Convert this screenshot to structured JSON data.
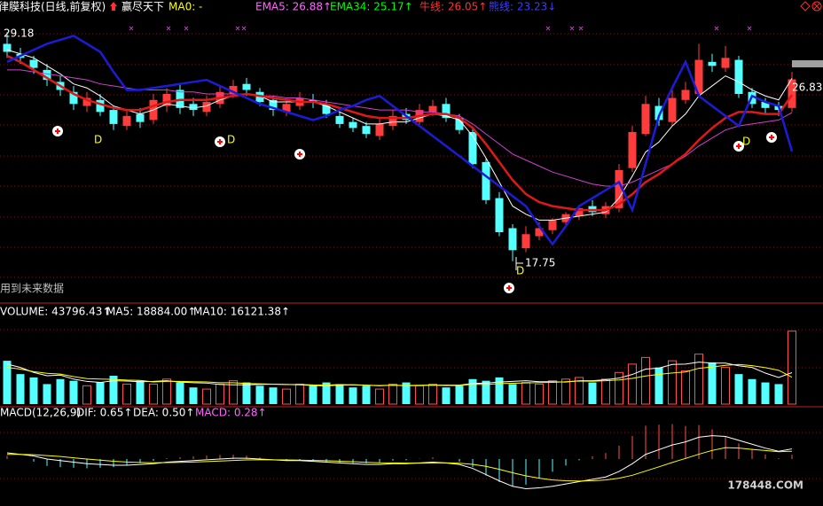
{
  "chart_data": [
    {
      "type": "candlestick",
      "header": [
        {
          "text": "律膜科技(日线,前复权)",
          "color": "#ffffff"
        },
        {
          "text": "赢尽天下",
          "color": "#ffffff"
        },
        {
          "text": "MA0: -",
          "color": "#ffff00"
        },
        {
          "text": "EMA5: 26.88↑",
          "color": "#ff66ff"
        },
        {
          "text": "EMA34: 25.17↑",
          "color": "#00ff00"
        },
        {
          "text": "牛线: 26.05↑",
          "color": "#ff3030"
        },
        {
          "text": "熊线: 23.23↓",
          "color": "#3c3cff"
        }
      ],
      "up_color": "#ff3c3c",
      "down_color": "#54ffff",
      "ylim": [
        15.75,
        30.7
      ],
      "open": [
        28.6,
        28.1,
        27.8,
        27.3,
        26.7,
        26.2,
        25.5,
        25.8,
        25.3,
        24.5,
        25.1,
        24.8,
        25.5,
        26.3,
        25.6,
        25.2,
        25.6,
        26.1,
        26.6,
        26.2,
        25.8,
        25.2,
        25.5,
        25.8,
        25.6,
        25.0,
        24.7,
        24.5,
        24.0,
        24.5,
        25.1,
        24.7,
        25.2,
        25.6,
        24.9,
        24.2,
        22.7,
        20.9,
        19.4,
        18.4,
        19.0,
        19.3,
        19.7,
        20.0,
        20.5,
        20.1,
        20.4,
        22.4,
        24.1,
        25.5,
        24.7,
        25.8,
        26.1,
        27.7,
        27.4,
        27.8,
        26.2,
        25.7,
        25.5,
        25.4
      ],
      "high": [
        29.18,
        28.4,
        28.0,
        27.6,
        27.0,
        26.5,
        26.2,
        26.1,
        25.5,
        25.3,
        25.4,
        26.1,
        26.4,
        26.6,
        25.9,
        26.0,
        26.5,
        26.8,
        26.9,
        26.4,
        26.0,
        25.9,
        26.2,
        26.1,
        25.8,
        25.2,
        24.9,
        24.7,
        24.9,
        25.3,
        25.4,
        25.6,
        25.8,
        25.9,
        25.1,
        24.4,
        22.9,
        21.2,
        19.6,
        19.5,
        19.7,
        19.9,
        20.2,
        20.5,
        20.8,
        20.7,
        22.6,
        24.5,
        26.0,
        25.9,
        26.3,
        26.7,
        28.6,
        28.1,
        28.5,
        28.0,
        26.4,
        25.9,
        25.7,
        27.2
      ],
      "low": [
        27.9,
        27.6,
        27.1,
        26.5,
        26.0,
        25.3,
        25.2,
        25.0,
        24.3,
        24.3,
        24.4,
        24.6,
        25.2,
        25.1,
        25.0,
        25.0,
        25.4,
        25.9,
        26.0,
        25.5,
        25.0,
        25.0,
        25.3,
        25.4,
        24.9,
        24.4,
        24.2,
        23.9,
        23.8,
        24.3,
        24.6,
        24.5,
        25.0,
        24.7,
        24.1,
        22.4,
        20.6,
        19.0,
        17.75,
        18.2,
        18.8,
        19.1,
        19.5,
        19.8,
        20.0,
        19.9,
        20.2,
        22.2,
        24.0,
        24.5,
        24.5,
        25.6,
        26.0,
        27.2,
        27.2,
        25.9,
        25.4,
        25.1,
        25.0,
        25.2
      ],
      "close": [
        28.2,
        27.9,
        27.4,
        26.8,
        26.3,
        25.6,
        25.9,
        25.2,
        24.6,
        25.0,
        24.7,
        25.8,
        26.1,
        25.4,
        25.3,
        25.7,
        26.2,
        26.5,
        26.3,
        25.7,
        25.3,
        25.6,
        25.9,
        25.7,
        25.1,
        24.6,
        24.4,
        24.1,
        24.6,
        25.0,
        24.8,
        25.3,
        25.5,
        24.9,
        24.3,
        22.6,
        20.8,
        19.2,
        18.3,
        19.1,
        19.4,
        19.8,
        20.1,
        20.4,
        20.2,
        20.5,
        22.3,
        24.2,
        25.6,
        24.8,
        25.9,
        26.3,
        27.8,
        27.5,
        27.9,
        26.1,
        25.6,
        25.4,
        25.3,
        26.83
      ],
      "series": [
        {
          "color": "#ffffff",
          "width": 1,
          "values": [
            28.3,
            28.1,
            27.9,
            27.5,
            27.1,
            26.6,
            26.4,
            26.0,
            25.5,
            25.3,
            25.1,
            25.3,
            25.6,
            25.5,
            25.4,
            25.5,
            25.8,
            26.0,
            26.1,
            26.0,
            25.7,
            25.7,
            25.7,
            25.7,
            25.5,
            25.2,
            24.9,
            24.6,
            24.6,
            24.7,
            24.7,
            24.9,
            25.1,
            25.0,
            24.8,
            24.0,
            22.9,
            21.7,
            20.5,
            20.1,
            19.8,
            19.8,
            19.9,
            20.0,
            20.1,
            20.2,
            20.9,
            22.0,
            23.2,
            23.7,
            24.5,
            25.1,
            26.0,
            26.5,
            27.0,
            26.7,
            26.3,
            26.0,
            25.8,
            26.88
          ]
        },
        {
          "color": "#d040d0",
          "width": 1,
          "values": [
            27.3,
            27.3,
            27.2,
            27.1,
            27.0,
            26.9,
            26.8,
            26.6,
            26.5,
            26.4,
            26.3,
            26.3,
            26.3,
            26.2,
            26.2,
            26.1,
            26.1,
            26.1,
            26.1,
            26.0,
            26.0,
            25.9,
            25.9,
            25.8,
            25.7,
            25.6,
            25.5,
            25.4,
            25.3,
            25.3,
            25.3,
            25.2,
            25.2,
            25.1,
            25.0,
            24.6,
            24.1,
            23.6,
            23.1,
            22.8,
            22.5,
            22.2,
            22.0,
            21.8,
            21.6,
            21.5,
            21.5,
            21.7,
            22.0,
            22.3,
            22.6,
            23.0,
            23.5,
            23.9,
            24.3,
            24.5,
            24.6,
            24.7,
            24.8,
            25.17
          ]
        },
        {
          "color": "#e01818",
          "width": 2.5,
          "values": [
            28.0,
            27.7,
            27.3,
            26.9,
            26.5,
            26.1,
            25.8,
            25.6,
            25.4,
            25.3,
            25.3,
            25.5,
            25.7,
            25.8,
            25.8,
            25.8,
            25.9,
            26.0,
            26.1,
            26.0,
            25.9,
            25.8,
            25.7,
            25.7,
            25.6,
            25.4,
            25.2,
            25.0,
            24.9,
            24.9,
            24.9,
            25.0,
            25.1,
            25.1,
            24.9,
            24.4,
            23.6,
            22.7,
            21.8,
            21.1,
            20.7,
            20.5,
            20.4,
            20.3,
            20.3,
            20.3,
            20.6,
            21.1,
            21.7,
            22.1,
            22.6,
            23.1,
            23.8,
            24.4,
            24.9,
            25.2,
            25.2,
            25.1,
            25.1,
            26.05
          ]
        },
        {
          "color": "#1c1cd8",
          "width": 2.5,
          "values": [
            27.7,
            28.0,
            28.3,
            28.6,
            28.8,
            29.0,
            28.6,
            28.2,
            27.2,
            26.3,
            26.3,
            26.4,
            26.5,
            26.6,
            26.7,
            26.8,
            26.5,
            26.2,
            25.9,
            25.6,
            25.4,
            25.2,
            25.0,
            24.8,
            25.0,
            25.3,
            25.5,
            25.8,
            26.0,
            25.5,
            25.0,
            24.5,
            24.0,
            23.5,
            23.0,
            22.5,
            22.0,
            21.5,
            21.0,
            20.5,
            19.5,
            18.6,
            19.5,
            20.5,
            20.9,
            21.3,
            21.7,
            20.3,
            22.6,
            25.0,
            26.4,
            27.7,
            26.0,
            25.5,
            25.0,
            24.5,
            26.0,
            25.7,
            25.5,
            23.23
          ]
        }
      ],
      "annotations": [
        "29.18",
        "17.75",
        "26.83"
      ],
      "signal_labels": [
        "D",
        "D",
        "D",
        "D"
      ],
      "note": "用到未来数据"
    },
    {
      "type": "volume",
      "header": [
        {
          "text": "VOLUME: 43796.43↑",
          "color": "#ffffff"
        },
        {
          "text": "MA5: 18884.00↑",
          "color": "#ffffff"
        },
        {
          "text": "MA10: 16121.38↑",
          "color": "#ffffff"
        }
      ],
      "up_color": "#ff5050",
      "down_color": "#54ffff",
      "ylim": [
        0,
        50000
      ],
      "values": [
        26000,
        18000,
        16000,
        12000,
        15000,
        14000,
        11000,
        13000,
        17000,
        12000,
        14000,
        12000,
        15000,
        13000,
        10000,
        9000,
        12000,
        14000,
        13000,
        11000,
        10000,
        9000,
        12000,
        11000,
        13000,
        12000,
        10000,
        11000,
        9000,
        12000,
        13000,
        11000,
        12000,
        10000,
        11000,
        15000,
        14000,
        16000,
        12000,
        13000,
        12000,
        14000,
        15000,
        16000,
        13000,
        15000,
        19000,
        24000,
        28000,
        22000,
        26000,
        20000,
        30000,
        25000,
        22000,
        18000,
        15000,
        13000,
        12000,
        43796.43
      ],
      "series": [
        {
          "color": "#ffffff",
          "width": 1,
          "values": [
            24000,
            22000,
            19000,
            17000,
            17400,
            15000,
            13600,
            13000,
            14000,
            13800,
            13400,
            13600,
            14000,
            13200,
            12800,
            12600,
            11800,
            11600,
            11600,
            11800,
            12000,
            11800,
            11600,
            11200,
            11000,
            11400,
            11600,
            11400,
            11000,
            11400,
            11000,
            11200,
            11400,
            11400,
            11400,
            12400,
            12600,
            13200,
            13600,
            14000,
            13400,
            13400,
            13200,
            14000,
            14000,
            14600,
            15600,
            17800,
            21000,
            21600,
            23800,
            24000,
            25200,
            24600,
            24600,
            23000,
            22000,
            18600,
            16000,
            18884
          ]
        },
        {
          "color": "#ffff00",
          "width": 1,
          "values": [
            22000,
            21000,
            19500,
            18500,
            18000,
            16500,
            15300,
            15000,
            14800,
            14400,
            14200,
            13300,
            13600,
            13600,
            13400,
            13300,
            12800,
            12800,
            12400,
            12200,
            12000,
            11800,
            11800,
            11500,
            11400,
            11700,
            11600,
            11300,
            11200,
            11300,
            11200,
            11300,
            11400,
            11100,
            11200,
            11900,
            11800,
            12300,
            12500,
            12700,
            12900,
            13000,
            13400,
            13800,
            13700,
            14000,
            14500,
            15400,
            16900,
            17800,
            18700,
            19300,
            21500,
            22300,
            23300,
            23800,
            23100,
            21900,
            20300,
            16121.38
          ]
        }
      ]
    },
    {
      "type": "macd",
      "header": [
        {
          "text": "MACD(12,26,9)",
          "color": "#ffffff"
        },
        {
          "text": "DIF: 0.65↑",
          "color": "#ffffff"
        },
        {
          "text": "DEA: 0.50↑",
          "color": "#ffffff"
        },
        {
          "text": "MACD: 0.28↑",
          "color": "#ff66ff"
        }
      ],
      "up_color": "#ff5050",
      "down_color": "#54ffff",
      "ylim": [
        -2.5,
        2.5
      ],
      "values": [
        0.2,
        0.0,
        -0.16,
        -0.44,
        -0.52,
        -0.56,
        -0.6,
        -0.56,
        -0.52,
        -0.42,
        -0.26,
        -0.12,
        0.06,
        0.12,
        0.18,
        0.22,
        0.26,
        0.28,
        0.22,
        0.1,
        0.0,
        -0.08,
        -0.06,
        -0.12,
        -0.18,
        -0.22,
        -0.26,
        -0.28,
        -0.22,
        -0.1,
        -0.08,
        0.02,
        0.1,
        0.0,
        -0.16,
        -0.52,
        -1.06,
        -1.48,
        -1.74,
        -1.64,
        -1.24,
        -0.82,
        -0.42,
        -0.08,
        0.18,
        0.38,
        0.86,
        1.48,
        2.14,
        2.2,
        2.24,
        2.12,
        2.18,
        1.9,
        1.44,
        1.0,
        0.66,
        0.3,
        0.06,
        0.28
      ],
      "series": [
        {
          "color": "#ffffff",
          "width": 1,
          "values": [
            0.4,
            0.3,
            0.2,
            0.0,
            -0.1,
            -0.2,
            -0.3,
            -0.35,
            -0.4,
            -0.4,
            -0.35,
            -0.3,
            -0.2,
            -0.15,
            -0.1,
            -0.05,
            0.0,
            0.05,
            0.05,
            0.0,
            -0.05,
            -0.1,
            -0.1,
            -0.15,
            -0.2,
            -0.25,
            -0.3,
            -0.35,
            -0.35,
            -0.3,
            -0.3,
            -0.25,
            -0.2,
            -0.25,
            -0.35,
            -0.6,
            -1.0,
            -1.4,
            -1.75,
            -1.9,
            -1.85,
            -1.75,
            -1.6,
            -1.45,
            -1.3,
            -1.15,
            -0.8,
            -0.3,
            0.3,
            0.6,
            0.9,
            1.1,
            1.4,
            1.5,
            1.45,
            1.2,
            0.95,
            0.7,
            0.5,
            0.65
          ]
        },
        {
          "color": "#ffff00",
          "width": 1,
          "values": [
            0.3,
            0.3,
            0.28,
            0.22,
            0.16,
            0.08,
            0.0,
            -0.07,
            -0.14,
            -0.19,
            -0.22,
            -0.24,
            -0.23,
            -0.21,
            -0.19,
            -0.16,
            -0.13,
            -0.09,
            -0.06,
            -0.05,
            -0.05,
            -0.06,
            -0.07,
            -0.09,
            -0.11,
            -0.14,
            -0.17,
            -0.21,
            -0.24,
            -0.25,
            -0.26,
            -0.26,
            -0.25,
            -0.25,
            -0.27,
            -0.34,
            -0.47,
            -0.66,
            -0.88,
            -1.08,
            -1.23,
            -1.34,
            -1.39,
            -1.41,
            -1.39,
            -1.34,
            -1.23,
            -1.04,
            -0.77,
            -0.5,
            -0.22,
            0.04,
            0.31,
            0.55,
            0.73,
            0.7,
            0.62,
            0.55,
            0.47,
            0.5
          ]
        }
      ],
      "watermark": "178448.COM"
    }
  ]
}
